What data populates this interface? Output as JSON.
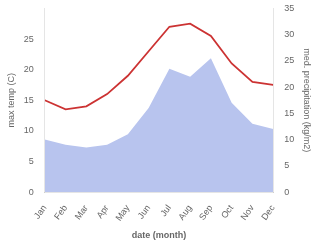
{
  "chart_data": {
    "type": "line",
    "xlabel": "date (month)",
    "ylabel": "max temp (C)",
    "y2label": "med. precipitation (kg/m2)",
    "categories": [
      "Jan",
      "Feb",
      "Mar",
      "Apr",
      "May",
      "Jun",
      "Jul",
      "Aug",
      "Sep",
      "Oct",
      "Nov",
      "Dec"
    ],
    "series": [
      {
        "type": "line",
        "color": "#cc3333",
        "axis": "y",
        "values": [
          15.0,
          13.5,
          14.0,
          16.0,
          19.0,
          23.0,
          27.0,
          27.5,
          25.5,
          21.0,
          18.0,
          17.5
        ]
      },
      {
        "type": "area",
        "color": "#b8c4ee",
        "axis": "y2",
        "values": [
          10.0,
          9.0,
          8.5,
          9.0,
          11.0,
          16.0,
          23.5,
          22.0,
          25.5,
          17.0,
          13.0,
          12.0
        ]
      }
    ],
    "ylim": [
      0,
      30
    ],
    "yticks": [
      0,
      5,
      10,
      15,
      20,
      25
    ],
    "y2lim": [
      0,
      35
    ],
    "y2ticks": [
      0,
      5,
      10,
      15,
      20,
      25,
      30,
      35
    ],
    "grid": false
  }
}
